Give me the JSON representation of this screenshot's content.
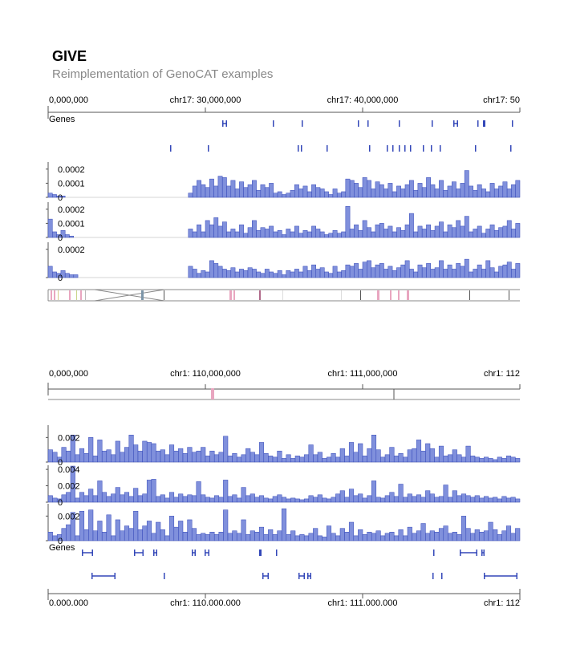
{
  "header": {
    "title": "GIVE",
    "subtitle": "Reimplementation of GenoCAT examples"
  },
  "colors": {
    "bar_fill": "#8090dc",
    "bar_stroke": "#3347b8",
    "gene": "#3347b8",
    "axis": "#555555",
    "interaction_pink": "#e9a6c0"
  },
  "panel1": {
    "ruler": [
      "0,000,000",
      "chr17: 30,000,000",
      "chr17: 40,000,000",
      "chr17: 50"
    ],
    "genes_label": "Genes",
    "tracks": [
      {
        "ticks": [
          "0.0002",
          "0.0001",
          "0"
        ]
      },
      {
        "ticks": [
          "0.0002",
          "0.0001",
          "0"
        ]
      },
      {
        "ticks": [
          "0.0002",
          "0"
        ]
      }
    ]
  },
  "panel2": {
    "ruler_top": [
      "0,000,000",
      "chr1: 110,000,000",
      "chr1: 111,000,000",
      "chr1: 112"
    ],
    "ruler_bottom": [
      "0,000,000",
      "chr1: 110,000,000",
      "chr1: 111,000,000",
      "chr1: 112"
    ],
    "genes_label": "Genes",
    "tracks": [
      {
        "ticks": [
          "0.002",
          "0"
        ]
      },
      {
        "ticks": [
          "0.004",
          "0.002",
          "0"
        ]
      },
      {
        "ticks": [
          "0.002",
          "0"
        ]
      }
    ]
  },
  "chart_data": [
    {
      "type": "bar",
      "title": "",
      "series": [
        {
          "values": [
            3e-05,
            2e-05,
            1e-05,
            1e-05,
            0,
            0,
            0,
            0,
            0,
            0,
            0,
            0,
            0,
            0,
            0,
            0,
            0,
            0,
            0,
            0,
            0,
            0,
            0,
            0,
            0,
            0,
            0,
            0,
            0,
            0,
            0,
            0,
            0,
            3e-05,
            8e-05,
            0.00012,
            9e-05,
            7e-05,
            0.00013,
            8e-05,
            0.00015,
            0.00014,
            8e-05,
            0.00012,
            6e-05,
            0.00011,
            7e-05,
            9e-05,
            0.00012,
            5e-05,
            9e-05,
            7e-05,
            0.0001,
            3e-05,
            4e-05,
            2e-05,
            3e-05,
            5e-05,
            9e-05,
            6e-05,
            8e-05,
            4e-05,
            9e-05,
            7e-05,
            6e-05,
            4e-05,
            2e-05,
            6e-05,
            3e-05,
            4e-05,
            0.00013,
            0.00012,
            0.0001,
            7e-05,
            0.00014,
            0.00012,
            6e-05,
            0.00011,
            9e-05,
            6e-05,
            0.0001,
            4e-05,
            8e-05,
            6e-05,
            9e-05,
            0.00012,
            5e-05,
            0.0001,
            7e-05,
            0.00014,
            9e-05,
            6e-05,
            0.00012,
            5e-05,
            8e-05,
            0.00011,
            6e-05,
            0.0001,
            0.00019,
            8e-05,
            5e-05,
            9e-05,
            6e-05,
            4e-05,
            0.0001,
            6e-05,
            8e-05,
            0.00011,
            6e-05,
            9e-05,
            0.00012
          ]
        },
        {
          "values": [
            0.00013,
            4e-05,
            2e-05,
            5e-05,
            2e-05,
            1e-05,
            0,
            0,
            0,
            0,
            0,
            0,
            0,
            0,
            0,
            0,
            0,
            0,
            0,
            0,
            0,
            0,
            0,
            0,
            0,
            0,
            0,
            0,
            0,
            0,
            0,
            0,
            0,
            6e-05,
            4e-05,
            9e-05,
            4e-05,
            0.00012,
            9e-05,
            0.00014,
            8e-05,
            0.00011,
            4e-05,
            6e-05,
            4e-05,
            9e-05,
            3e-05,
            7e-05,
            0.00012,
            5e-05,
            7e-05,
            6e-05,
            8e-05,
            4e-05,
            5e-05,
            2e-05,
            6e-05,
            4e-05,
            8e-05,
            3e-05,
            5e-05,
            4e-05,
            8e-05,
            6e-05,
            4e-05,
            2e-05,
            3e-05,
            5e-05,
            3e-05,
            4e-05,
            0.00022,
            6e-05,
            9e-05,
            5e-05,
            0.00012,
            7e-05,
            4e-05,
            9e-05,
            0.0001,
            6e-05,
            8e-05,
            4e-05,
            7e-05,
            5e-05,
            9e-05,
            0.00017,
            4e-05,
            8e-05,
            6e-05,
            9e-05,
            5e-05,
            8e-05,
            0.00011,
            4e-05,
            9e-05,
            7e-05,
            0.00012,
            8e-05,
            0.00015,
            4e-05,
            6e-05,
            8e-05,
            3e-05,
            6e-05,
            9e-05,
            5e-05,
            7e-05,
            8e-05,
            0.00012,
            6e-05,
            0.0001
          ]
        },
        {
          "values": [
            8e-05,
            4e-05,
            3e-05,
            5e-05,
            3e-05,
            2e-05,
            2e-05,
            0,
            0,
            0,
            0,
            0,
            0,
            0,
            0,
            0,
            0,
            0,
            0,
            0,
            0,
            0,
            0,
            0,
            0,
            0,
            0,
            0,
            0,
            0,
            0,
            0,
            0,
            8e-05,
            6e-05,
            3e-05,
            5e-05,
            4e-05,
            0.00012,
            0.0001,
            8e-05,
            6e-05,
            5e-05,
            7e-05,
            4e-05,
            6e-05,
            5e-05,
            7e-05,
            6e-05,
            4e-05,
            3e-05,
            6e-05,
            4e-05,
            3e-05,
            5e-05,
            2e-05,
            5e-05,
            4e-05,
            6e-05,
            4e-05,
            8e-05,
            5e-05,
            9e-05,
            6e-05,
            7e-05,
            4e-05,
            3e-05,
            8e-05,
            4e-05,
            5e-05,
            9e-05,
            8e-05,
            0.0001,
            6e-05,
            0.00011,
            0.00012,
            7e-05,
            9e-05,
            0.0001,
            6e-05,
            8e-05,
            5e-05,
            7e-05,
            9e-05,
            0.00012,
            6e-05,
            4e-05,
            9e-05,
            7e-05,
            0.0001,
            6e-05,
            7e-05,
            0.00012,
            6e-05,
            9e-05,
            6e-05,
            0.0001,
            8e-05,
            0.00013,
            4e-05,
            6e-05,
            9e-05,
            6e-05,
            0.00012,
            7e-05,
            4e-05,
            8e-05,
            9e-05,
            0.00011,
            6e-05,
            0.0001
          ]
        }
      ]
    },
    {
      "type": "bar",
      "title": "",
      "series": [
        {
          "values": [
            0.001,
            0.0008,
            0.0004,
            0.0012,
            0.0009,
            0.0022,
            0.0006,
            0.0011,
            0.0007,
            0.002,
            0.0005,
            0.0018,
            0.0009,
            0.001,
            0.0006,
            0.0017,
            0.0008,
            0.0012,
            0.0022,
            0.0014,
            0.0009,
            0.0017,
            0.0016,
            0.0015,
            0.0009,
            0.001,
            0.0006,
            0.0014,
            0.0009,
            0.0011,
            0.0007,
            0.0012,
            0.0008,
            0.0009,
            0.0012,
            0.0005,
            0.0009,
            0.0006,
            0.0008,
            0.0021,
            0.0005,
            0.0007,
            0.0004,
            0.0006,
            0.0011,
            0.0008,
            0.0006,
            0.0016,
            0.0007,
            0.0005,
            0.0004,
            0.0009,
            0.0003,
            0.0006,
            0.0003,
            0.0005,
            0.0004,
            0.0006,
            0.0014,
            0.0006,
            0.0008,
            0.0003,
            0.0004,
            0.0007,
            0.0004,
            0.0011,
            0.0005,
            0.0016,
            0.0008,
            0.0015,
            0.0005,
            0.0011,
            0.0022,
            0.001,
            0.0004,
            0.0006,
            0.0012,
            0.0005,
            0.0007,
            0.0004,
            0.001,
            0.0011,
            0.0018,
            0.0009,
            0.0015,
            0.0011,
            0.0004,
            0.0013,
            0.0005,
            0.0006,
            0.001,
            0.0006,
            0.0004,
            0.0013,
            0.0005,
            0.0004,
            0.0003,
            0.0004,
            0.0003,
            0.0002,
            0.0004,
            0.0003,
            0.0005,
            0.0004,
            0.0003
          ]
        },
        {
          "values": [
            0.0008,
            0.0005,
            0.0004,
            0.0009,
            0.0012,
            0.0044,
            0.0005,
            0.0012,
            0.0008,
            0.0016,
            0.0008,
            0.0026,
            0.0012,
            0.0007,
            0.001,
            0.0018,
            0.0009,
            0.0012,
            0.0007,
            0.0017,
            0.0008,
            0.001,
            0.0027,
            0.0028,
            0.0007,
            0.0009,
            0.0005,
            0.0012,
            0.0006,
            0.001,
            0.0007,
            0.0009,
            0.0008,
            0.0025,
            0.0009,
            0.0006,
            0.0005,
            0.0008,
            0.0006,
            0.0027,
            0.0007,
            0.0009,
            0.0005,
            0.0018,
            0.0008,
            0.001,
            0.0006,
            0.0008,
            0.0005,
            0.0004,
            0.0007,
            0.0009,
            0.0006,
            0.0004,
            0.0005,
            0.0004,
            0.0003,
            0.0004,
            0.0008,
            0.0006,
            0.0009,
            0.0005,
            0.0004,
            0.0006,
            0.001,
            0.0014,
            0.0006,
            0.0016,
            0.0008,
            0.001,
            0.0005,
            0.0008,
            0.0026,
            0.0006,
            0.0005,
            0.0008,
            0.0012,
            0.0007,
            0.0022,
            0.0006,
            0.001,
            0.0007,
            0.0009,
            0.0006,
            0.0014,
            0.001,
            0.0006,
            0.0007,
            0.0021,
            0.0006,
            0.0014,
            0.0008,
            0.001,
            0.0008,
            0.0006,
            0.0008,
            0.0005,
            0.0007,
            0.0005,
            0.0006,
            0.0004,
            0.0007,
            0.0005,
            0.0006,
            0.0004
          ]
        },
        {
          "values": [
            0.0007,
            0.0004,
            0.0005,
            0.001,
            0.0013,
            0.0023,
            0.0004,
            0.0024,
            0.0009,
            0.0025,
            0.0008,
            0.0016,
            0.0007,
            0.0021,
            0.0004,
            0.0017,
            0.0008,
            0.0012,
            0.001,
            0.0024,
            0.0009,
            0.0012,
            0.0016,
            0.0006,
            0.0015,
            0.0009,
            0.0004,
            0.002,
            0.0011,
            0.0016,
            0.0007,
            0.0017,
            0.001,
            0.0005,
            0.0006,
            0.0005,
            0.0007,
            0.0005,
            0.0007,
            0.0025,
            0.0006,
            0.0008,
            0.0006,
            0.0017,
            0.0005,
            0.0008,
            0.0007,
            0.0011,
            0.0005,
            0.0009,
            0.0005,
            0.0008,
            0.0026,
            0.0005,
            0.0008,
            0.0004,
            0.0005,
            0.0004,
            0.0006,
            0.001,
            0.0004,
            0.0003,
            0.0012,
            0.0006,
            0.0004,
            0.001,
            0.0007,
            0.0015,
            0.0004,
            0.0009,
            0.0005,
            0.0007,
            0.0006,
            0.0008,
            0.0004,
            0.0006,
            0.0007,
            0.0004,
            0.0009,
            0.0004,
            0.0011,
            0.0006,
            0.0008,
            0.0014,
            0.0006,
            0.0008,
            0.0007,
            0.001,
            0.0012,
            0.0006,
            0.0007,
            0.0005,
            0.002,
            0.001,
            0.0006,
            0.0009,
            0.0007,
            0.0008,
            0.0015,
            0.0009,
            0.0005,
            0.0008,
            0.0012,
            0.0006,
            0.001
          ]
        }
      ]
    }
  ]
}
